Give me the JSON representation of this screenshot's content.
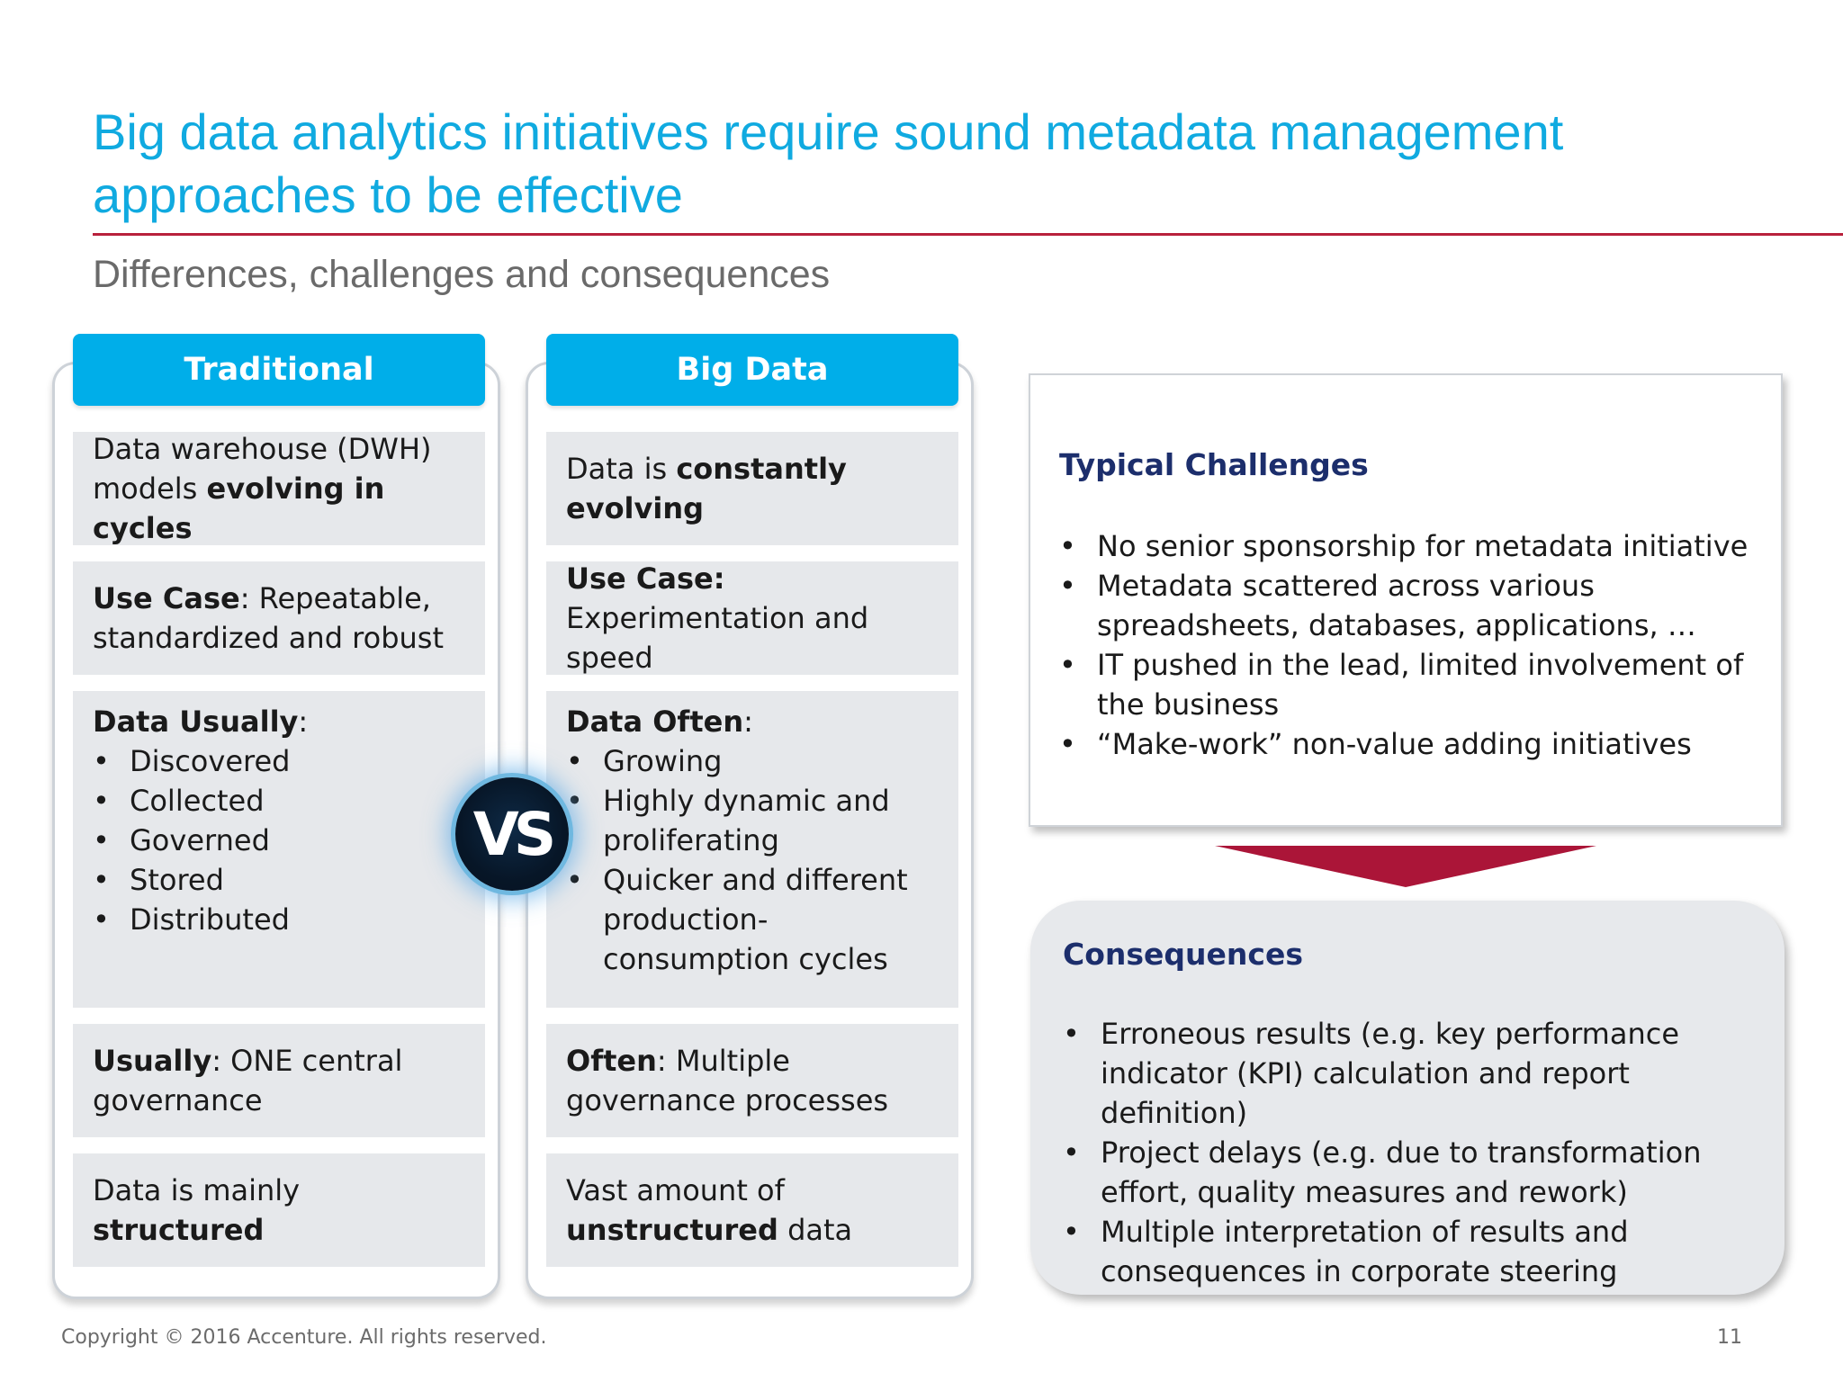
{
  "title": {
    "line1": "Big data analytics initiatives require sound metadata management",
    "line2": "approaches to be effective"
  },
  "subtitle": "Differences, challenges and consequences",
  "traditional": {
    "header": "Traditional",
    "cell1": {
      "pre": "Data warehouse (DWH) models ",
      "bold": "evolving in cycles"
    },
    "cell2": {
      "bold": "Use Case",
      "post": ": Repeatable, standardized and robust"
    },
    "cell3": {
      "heading": "Data Usually",
      "colon": ":",
      "items": [
        "Discovered",
        "Collected",
        "Governed",
        "Stored",
        "Distributed"
      ]
    },
    "cell4": {
      "bold": "Usually",
      "post": ": ONE central governance"
    },
    "cell5": {
      "pre": "Data is mainly ",
      "bold": "structured"
    }
  },
  "bigdata": {
    "header": "Big Data",
    "cell1": {
      "pre": "Data is ",
      "bold": "constantly evolving"
    },
    "cell2": {
      "bold": "Use Case:",
      "post": " Experimentation and speed"
    },
    "cell3": {
      "heading": "Data Often",
      "colon": ":",
      "items": [
        "Growing",
        "Highly dynamic and proliferating",
        "Quicker and different production-consumption cycles"
      ]
    },
    "cell4": {
      "bold": "Often",
      "post": ": Multiple governance processes"
    },
    "cell5": {
      "pre": "Vast amount of ",
      "bold": "unstructured",
      "post": " data"
    }
  },
  "vs_badge": "VS",
  "challenges": {
    "title": "Typical Challenges",
    "items": [
      "No senior sponsorship for metadata initiative",
      "Metadata scattered across various spreadsheets, databases, applications, …",
      "IT pushed in the lead, limited involvement of the business",
      "“Make-work” non-value adding initiatives"
    ]
  },
  "consequences": {
    "title": "Consequences",
    "items": [
      "Erroneous results (e.g. key performance indicator (KPI) calculation and report definition)",
      "Project delays (e.g. due to transformation effort, quality measures and rework)",
      "Multiple interpretation of results and consequences in corporate steering"
    ]
  },
  "footer": {
    "copyright": "Copyright © 2016 Accenture. All rights reserved.",
    "page_number": "11"
  },
  "colors": {
    "title_blue": "#10aae0",
    "header_blue": "#00aee9",
    "accent_red": "#ab1538",
    "box_title_navy": "#1c2e6c",
    "cell_gray": "#e6e8eb"
  }
}
